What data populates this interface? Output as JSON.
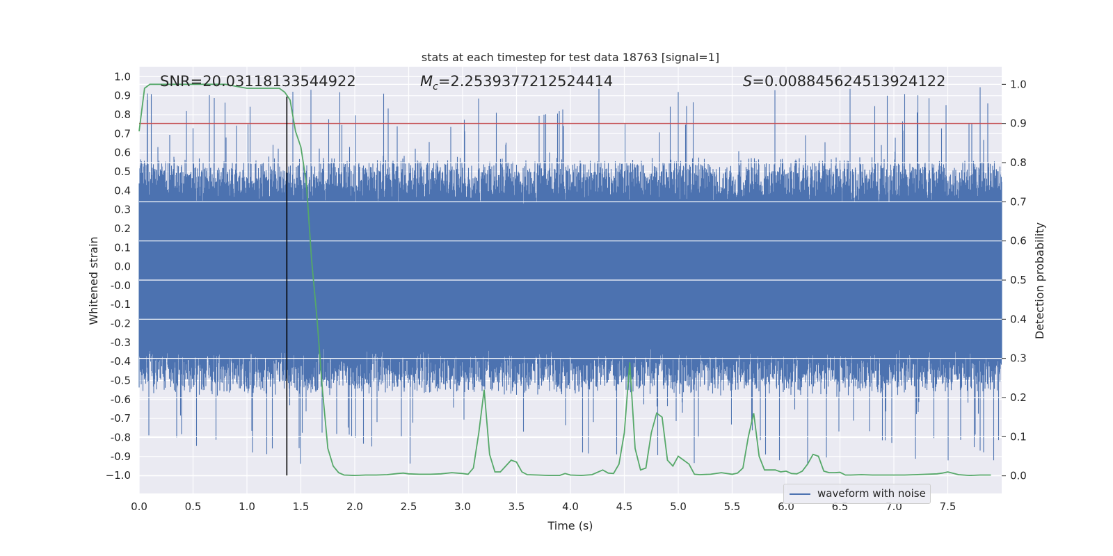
{
  "chart_data": {
    "type": "line",
    "title": "stats at each timestep for test data 18763 [signal=1]",
    "xlabel": "Time (s)",
    "ylabel": "Whitened strain",
    "y2label": "Detection probability",
    "xlim": [
      0.0,
      8.0
    ],
    "ylim": [
      -1.09,
      1.05
    ],
    "y2lim": [
      -0.045,
      1.045
    ],
    "x_ticks": [
      "0.0",
      "0.5",
      "1.0",
      "1.5",
      "2.0",
      "2.5",
      "3.0",
      "3.5",
      "4.0",
      "4.5",
      "5.0",
      "5.5",
      "6.0",
      "6.5",
      "7.0",
      "7.5"
    ],
    "y_ticks": [
      "1.0",
      "0.9",
      "0.8",
      "0.7",
      "0.6",
      "0.5",
      "0.4",
      "0.3",
      "0.2",
      "0.1",
      "0.0",
      "-0.0",
      "-0.1",
      "-0.2",
      "-0.3",
      "-0.4",
      "-0.5",
      "-0.6",
      "-0.7",
      "-0.8",
      "-0.9",
      "−1.0"
    ],
    "y2_ticks": [
      "1.0",
      "0.9",
      "0.8",
      "0.7",
      "0.6",
      "0.5",
      "0.4",
      "0.3",
      "0.2",
      "0.1",
      "0.0"
    ],
    "annotations": {
      "snr": "SNR=20.03118133544922",
      "mc_symbol": "M",
      "mc_sub": "c",
      "mc_value": "=2.2539377212524414",
      "s_symbol": "S",
      "s_value": "=0.008845624513924122"
    },
    "legend": {
      "label": "waveform with noise",
      "location": "lower right"
    },
    "threshold": {
      "y2": 0.9,
      "color": "#c44e52"
    },
    "merger_time": 1.37,
    "grid": true,
    "colors": {
      "strain": "#4c72b0",
      "probability": "#55a868",
      "threshold": "#c44e52",
      "merger": "#000000",
      "axes_bg": "#eaeaf2"
    },
    "series": [
      {
        "name": "waveform with noise",
        "axis": "left",
        "description_of_values": "noise band approx ±0.35 with spikes up to ±1.0",
        "x_range": [
          0.0,
          8.0
        ]
      },
      {
        "axis": "right",
        "x": [
          0.0,
          0.05,
          0.1,
          0.2,
          0.3,
          0.4,
          0.5,
          0.6,
          0.7,
          0.8,
          0.9,
          1.0,
          1.1,
          1.2,
          1.3,
          1.35,
          1.4,
          1.45,
          1.5,
          1.55,
          1.6,
          1.65,
          1.7,
          1.75,
          1.8,
          1.85,
          1.9,
          2.0,
          2.1,
          2.2,
          2.3,
          2.4,
          2.45,
          2.5,
          2.6,
          2.7,
          2.8,
          2.9,
          3.0,
          3.05,
          3.1,
          3.15,
          3.2,
          3.25,
          3.3,
          3.35,
          3.4,
          3.45,
          3.5,
          3.55,
          3.6,
          3.7,
          3.8,
          3.9,
          3.95,
          4.0,
          4.1,
          4.2,
          4.3,
          4.35,
          4.4,
          4.45,
          4.5,
          4.55,
          4.6,
          4.65,
          4.7,
          4.75,
          4.8,
          4.85,
          4.9,
          4.95,
          5.0,
          5.05,
          5.1,
          5.15,
          5.2,
          5.3,
          5.4,
          5.5,
          5.55,
          5.6,
          5.65,
          5.7,
          5.75,
          5.8,
          5.9,
          5.95,
          6.0,
          6.05,
          6.1,
          6.15,
          6.2,
          6.25,
          6.3,
          6.35,
          6.4,
          6.45,
          6.5,
          6.55,
          6.6,
          6.7,
          6.8,
          6.9,
          7.0,
          7.1,
          7.2,
          7.3,
          7.4,
          7.45,
          7.5,
          7.6,
          7.7,
          7.8,
          7.9
        ],
        "values": [
          0.88,
          0.99,
          1.0,
          1.0,
          1.0,
          1.0,
          1.0,
          1.0,
          1.0,
          1.0,
          0.995,
          0.99,
          0.99,
          0.99,
          0.99,
          0.98,
          0.96,
          0.88,
          0.84,
          0.75,
          0.55,
          0.4,
          0.22,
          0.07,
          0.025,
          0.008,
          0.002,
          0.001,
          0.002,
          0.002,
          0.003,
          0.006,
          0.007,
          0.005,
          0.004,
          0.004,
          0.005,
          0.008,
          0.006,
          0.004,
          0.02,
          0.11,
          0.22,
          0.055,
          0.01,
          0.01,
          0.025,
          0.04,
          0.035,
          0.01,
          0.003,
          0.002,
          0.001,
          0.001,
          0.006,
          0.002,
          0.001,
          0.003,
          0.015,
          0.007,
          0.006,
          0.03,
          0.11,
          0.29,
          0.07,
          0.015,
          0.02,
          0.11,
          0.16,
          0.15,
          0.04,
          0.025,
          0.05,
          0.04,
          0.03,
          0.004,
          0.003,
          0.004,
          0.008,
          0.004,
          0.007,
          0.02,
          0.1,
          0.16,
          0.05,
          0.015,
          0.015,
          0.01,
          0.012,
          0.006,
          0.005,
          0.012,
          0.03,
          0.055,
          0.05,
          0.012,
          0.008,
          0.008,
          0.009,
          0.002,
          0.002,
          0.003,
          0.002,
          0.002,
          0.002,
          0.002,
          0.003,
          0.004,
          0.005,
          0.007,
          0.01,
          0.003,
          0.001,
          0.002,
          0.002
        ]
      }
    ]
  }
}
